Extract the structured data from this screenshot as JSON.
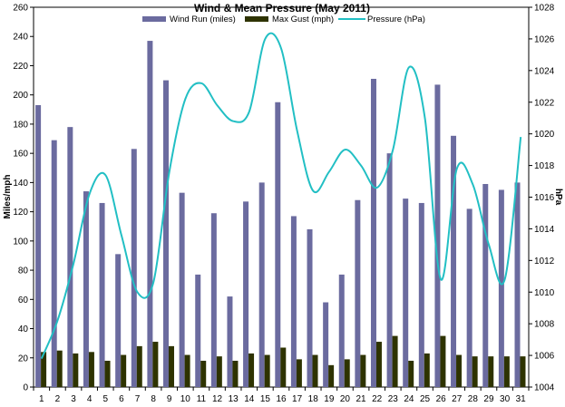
{
  "chart_data": {
    "type": "bar",
    "title": "Wind & Mean Pressure (May 2011)",
    "xlabel": "",
    "ylabel": "Miles/mph",
    "y2label": "hPa",
    "categories": [
      "1",
      "2",
      "3",
      "4",
      "5",
      "6",
      "7",
      "8",
      "9",
      "10",
      "11",
      "12",
      "13",
      "14",
      "15",
      "16",
      "17",
      "18",
      "19",
      "20",
      "21",
      "22",
      "23",
      "24",
      "25",
      "26",
      "27",
      "28",
      "29",
      "30",
      "31"
    ],
    "ylim": [
      0,
      260
    ],
    "yticks": [
      0,
      20,
      40,
      60,
      80,
      100,
      120,
      140,
      160,
      180,
      200,
      220,
      240,
      260
    ],
    "y2lim": [
      1004,
      1028
    ],
    "y2ticks": [
      1004,
      1006,
      1008,
      1010,
      1012,
      1014,
      1016,
      1018,
      1020,
      1022,
      1024,
      1026,
      1028
    ],
    "grid": false,
    "legend_position": "top",
    "series": [
      {
        "name": "Wind Run (miles)",
        "type": "bar",
        "axis": "left",
        "color": "#6b6b9f",
        "values": [
          193,
          169,
          178,
          134,
          126,
          91,
          163,
          237,
          210,
          133,
          77,
          119,
          62,
          127,
          140,
          195,
          117,
          108,
          58,
          77,
          128,
          211,
          160,
          129,
          126,
          207,
          172,
          122,
          139,
          135,
          140
        ]
      },
      {
        "name": "Max Gust (mph)",
        "type": "bar",
        "axis": "left",
        "color": "#2e3300",
        "values": [
          24,
          25,
          23,
          24,
          18,
          22,
          28,
          31,
          28,
          22,
          18,
          21,
          18,
          23,
          22,
          27,
          19,
          22,
          15,
          19,
          22,
          31,
          35,
          18,
          23,
          35,
          22,
          21,
          21,
          21,
          21
        ]
      },
      {
        "name": "Pressure (hPa)",
        "type": "line",
        "axis": "right",
        "color": "#22bfc4",
        "values": [
          1005.8,
          1008.2,
          1011.8,
          1016.2,
          1017.4,
          1013.6,
          1010.0,
          1010.6,
          1017.6,
          1022.2,
          1023.2,
          1021.8,
          1020.8,
          1021.4,
          1026.0,
          1025.4,
          1020.2,
          1016.4,
          1017.6,
          1019.0,
          1018.0,
          1016.6,
          1019.0,
          1024.2,
          1021.0,
          1010.8,
          1017.8,
          1016.8,
          1013.0,
          1010.8,
          1019.8
        ]
      }
    ]
  }
}
